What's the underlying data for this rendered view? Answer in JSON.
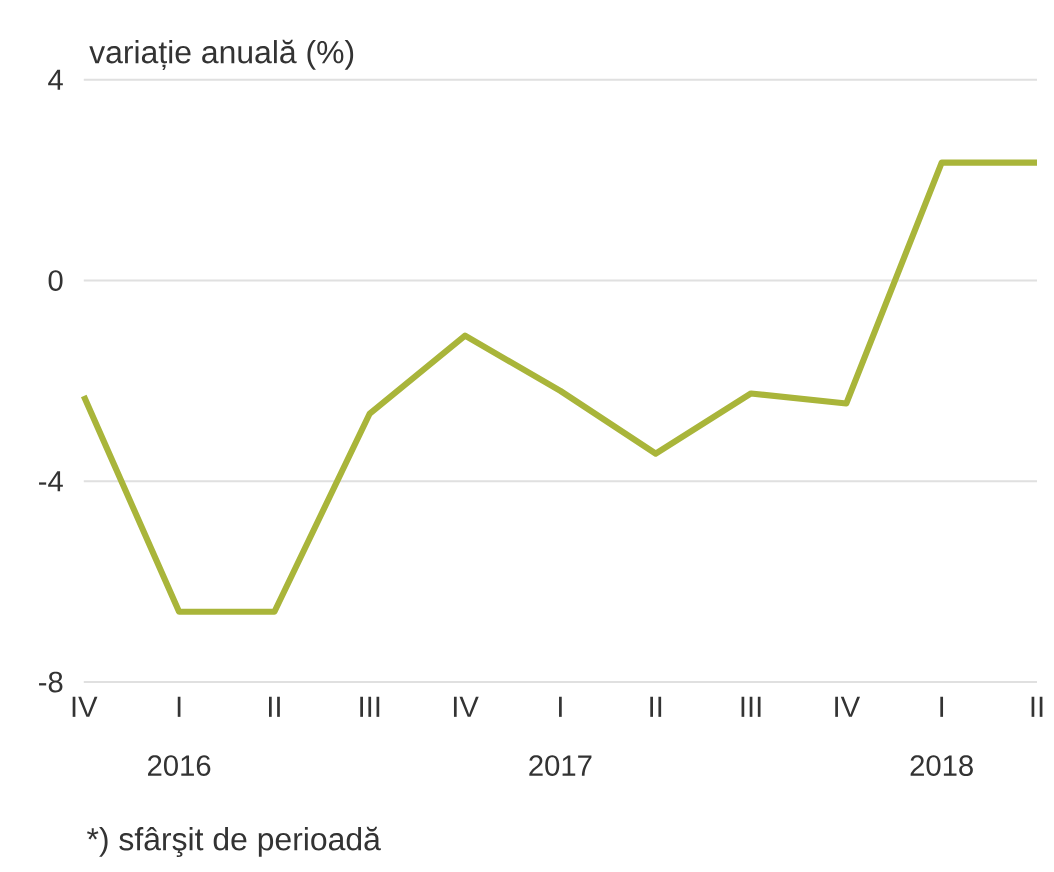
{
  "chart_data": {
    "type": "line",
    "ylabel": "variație anuală (%)",
    "categories": [
      "IV",
      "I",
      "II",
      "III",
      "IV",
      "I",
      "II",
      "III",
      "IV",
      "I",
      "II"
    ],
    "series": [
      {
        "color": "#a9b53a",
        "values": [
          -2.3,
          -6.6,
          -6.6,
          -2.65,
          -1.1,
          -2.2,
          -3.45,
          -2.25,
          -2.45,
          2.35,
          2.35
        ]
      }
    ],
    "ylim": [
      -8,
      4
    ],
    "yticks": [
      -8,
      -4,
      0,
      4
    ],
    "grid": "y",
    "marker": "none",
    "line_style": "solid",
    "annotations": [
      "2016",
      "2017",
      "2018",
      "*) sfârşit de perioadă"
    ]
  }
}
